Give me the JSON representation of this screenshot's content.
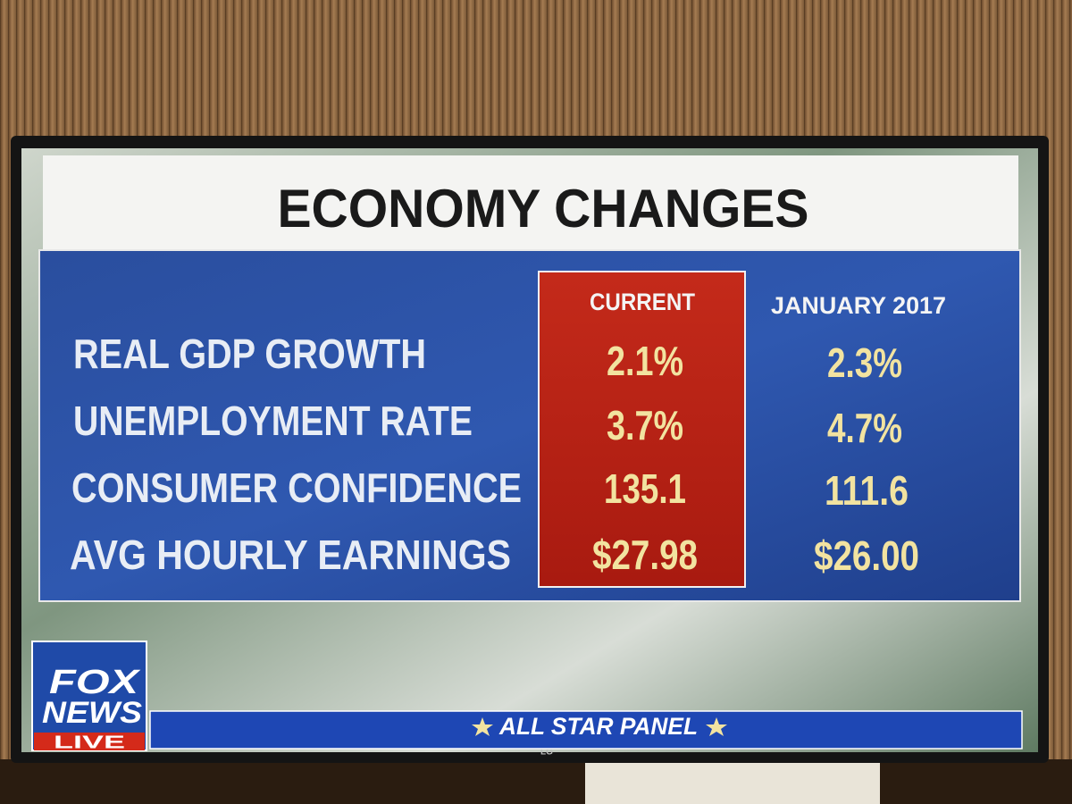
{
  "title": "ECONOMY CHANGES",
  "table": {
    "columns": [
      "CURRENT",
      "JANUARY 2017"
    ],
    "rows": [
      [
        "REAL GDP GROWTH",
        "2.1%",
        "2.3%"
      ],
      [
        "UNEMPLOYMENT RATE",
        "3.7%",
        "4.7%"
      ],
      [
        "CONSUMER CONFIDENCE",
        "135.1",
        "111.6"
      ],
      [
        "AVG HOURLY EARNINGS",
        "$27.98",
        "$26.00"
      ]
    ]
  },
  "logo": {
    "lines": [
      "FOX",
      "NEWS",
      "LIVE"
    ]
  },
  "banner": "ALL STAR PANEL",
  "tv_brand": "LG"
}
